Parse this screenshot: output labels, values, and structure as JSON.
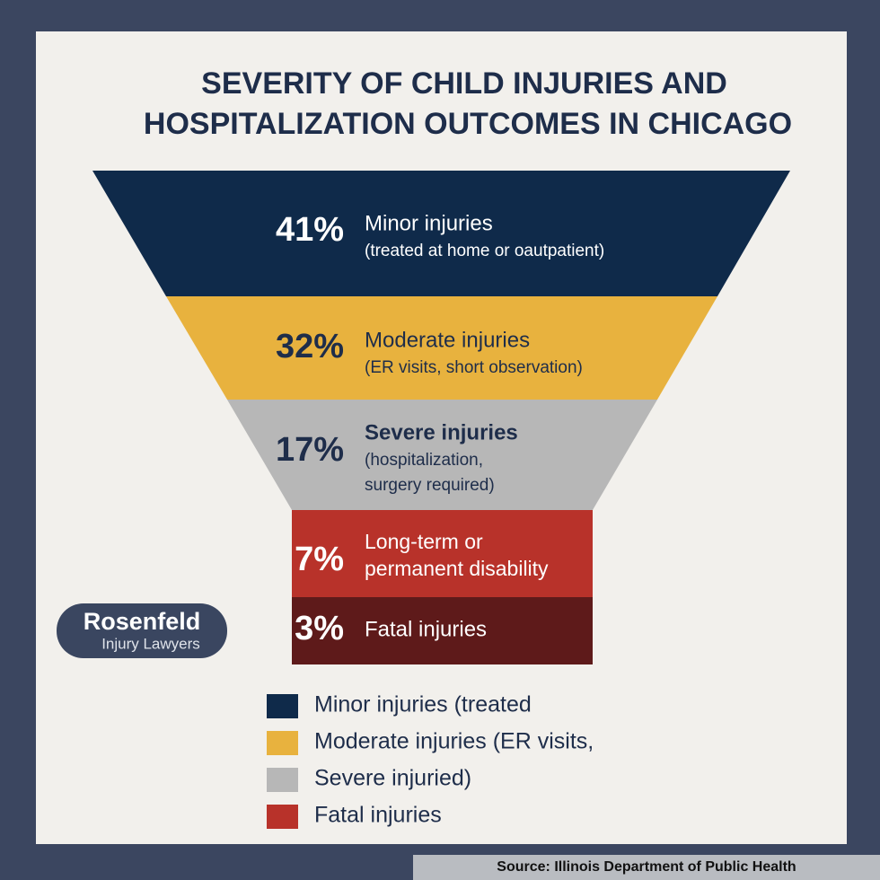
{
  "chart_data": {
    "type": "funnel",
    "title": [
      "SEVERITY OF CHILD INJURIES AND",
      "HOSPITALIZATION OUTCOMES IN CHICAGO"
    ],
    "categories": [
      "Minor injuries",
      "Moderate injuries",
      "Severe injuries",
      "Long-term or",
      "Fatal injuries"
    ],
    "details": [
      [
        "(treated at home or oautpatient)"
      ],
      [
        "(ER visits, short observation)"
      ],
      [
        "(hospitalization,",
        "surgery required)"
      ],
      [
        "permanent disability"
      ],
      []
    ],
    "values": [
      41,
      32,
      17,
      7,
      3
    ],
    "value_labels": [
      "41%",
      "32%",
      "17%",
      "7%",
      "3%"
    ],
    "colors": [
      "#0f2a4a",
      "#e8b23e",
      "#b7b7b7",
      "#b8322a",
      "#5e1a1a"
    ],
    "legend": [
      {
        "label": "Minor injuries (treated",
        "color": "#0f2a4a"
      },
      {
        "label": "Moderate injuries (ER visits,",
        "color": "#e8b23e"
      },
      {
        "label": "Severe injuried)",
        "color": "#b7b7b7"
      },
      {
        "label": "Fatal injuries",
        "color": "#b8322a"
      }
    ]
  },
  "logo": {
    "name": "Rosenfeld",
    "tagline": "Injury Lawyers"
  },
  "source": "Source: Illinois Department of Public Health"
}
